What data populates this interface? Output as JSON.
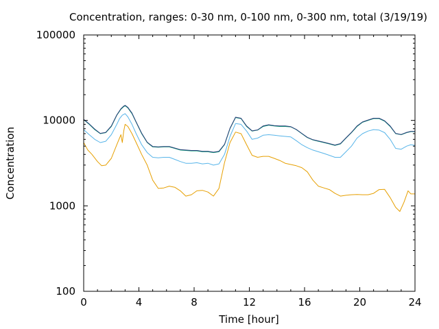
{
  "chart_data": {
    "type": "line",
    "title": "Concentration, ranges: 0-30 nm, 0-100 nm, 0-300 nm, total (3/19/19)",
    "xlabel": "Time [hour]",
    "ylabel": "Concentration",
    "xlim": [
      0,
      24
    ],
    "ylim": [
      100,
      100000
    ],
    "yscale": "log",
    "xticks": [
      0,
      4,
      8,
      12,
      16,
      20,
      24
    ],
    "xtick_labels": [
      "0",
      "4",
      "8",
      "12",
      "16",
      "20",
      "24"
    ],
    "yticks": [
      100,
      1000,
      10000,
      100000
    ],
    "ytick_labels": [
      "100",
      "1000",
      "10000",
      "100000"
    ],
    "grid": false,
    "legend": "none",
    "series": [
      {
        "color": "#e69f00",
        "x": [
          0,
          0.3,
          0.6,
          1.0,
          1.3,
          1.6,
          2.0,
          2.4,
          2.7,
          2.8,
          2.9,
          3.0,
          3.2,
          3.5,
          3.8,
          4.2,
          4.6,
          5.0,
          5.4,
          5.8,
          6.2,
          6.6,
          7.0,
          7.4,
          7.8,
          8.2,
          8.6,
          9.0,
          9.4,
          9.8,
          10.2,
          10.6,
          11.0,
          11.4,
          11.8,
          12.2,
          12.6,
          13.0,
          13.4,
          13.8,
          14.2,
          14.6,
          15.0,
          15.4,
          15.8,
          16.2,
          16.6,
          17.0,
          17.4,
          17.8,
          18.2,
          18.6,
          19.0,
          19.4,
          19.8,
          20.2,
          20.6,
          21.0,
          21.4,
          21.8,
          22.2,
          22.6,
          22.9,
          23.2,
          23.5,
          23.7,
          24.0
        ],
        "y": [
          5500,
          4500,
          4000,
          3300,
          2950,
          3000,
          3600,
          5200,
          6800,
          5500,
          7500,
          9000,
          8500,
          7000,
          5500,
          4000,
          3000,
          2000,
          1600,
          1620,
          1700,
          1650,
          1500,
          1300,
          1350,
          1500,
          1520,
          1450,
          1300,
          1600,
          3200,
          5500,
          7300,
          7000,
          5200,
          3900,
          3700,
          3800,
          3800,
          3600,
          3400,
          3150,
          3050,
          2950,
          2800,
          2500,
          2000,
          1700,
          1620,
          1550,
          1400,
          1300,
          1330,
          1350,
          1360,
          1350,
          1350,
          1400,
          1550,
          1560,
          1250,
          960,
          860,
          1100,
          1500,
          1380,
          1380
        ]
      },
      {
        "color": "#56b4e9",
        "x": [
          0,
          0.4,
          0.8,
          1.2,
          1.6,
          2.0,
          2.4,
          2.6,
          2.8,
          3.0,
          3.2,
          3.5,
          3.8,
          4.2,
          4.6,
          5.0,
          5.4,
          5.8,
          6.2,
          6.6,
          7.0,
          7.4,
          7.8,
          8.2,
          8.6,
          9.0,
          9.4,
          9.8,
          10.2,
          10.6,
          11.0,
          11.4,
          11.8,
          12.2,
          12.6,
          13.0,
          13.4,
          13.8,
          14.2,
          14.6,
          15.0,
          15.4,
          15.8,
          16.2,
          16.6,
          17.0,
          17.4,
          17.8,
          18.2,
          18.6,
          19.0,
          19.4,
          19.8,
          20.2,
          20.6,
          21.0,
          21.4,
          21.8,
          22.2,
          22.6,
          23.0,
          23.4,
          23.7,
          24.0
        ],
        "y": [
          7800,
          6800,
          6000,
          5500,
          5700,
          6800,
          9000,
          10500,
          11500,
          12000,
          11000,
          9000,
          7000,
          5200,
          4200,
          3700,
          3650,
          3700,
          3700,
          3500,
          3300,
          3150,
          3150,
          3200,
          3100,
          3150,
          3000,
          3100,
          4000,
          6500,
          9200,
          9000,
          7500,
          6000,
          6200,
          6700,
          6800,
          6700,
          6600,
          6500,
          6400,
          5800,
          5200,
          4800,
          4500,
          4300,
          4100,
          3900,
          3700,
          3700,
          4300,
          5000,
          6200,
          7000,
          7500,
          7800,
          7700,
          7200,
          6000,
          4700,
          4600,
          5000,
          5200,
          5100
        ]
      },
      {
        "color": "#009e73",
        "x": [
          0,
          0.4,
          0.8,
          1.2,
          1.6,
          2.0,
          2.4,
          2.7,
          2.9,
          3.0,
          3.2,
          3.5,
          3.8,
          4.2,
          4.6,
          5.0,
          5.4,
          5.8,
          6.2,
          6.6,
          7.0,
          7.4,
          7.8,
          8.2,
          8.6,
          9.0,
          9.4,
          9.8,
          10.2,
          10.6,
          11.0,
          11.4,
          11.8,
          12.2,
          12.6,
          13.0,
          13.4,
          13.8,
          14.2,
          14.6,
          15.0,
          15.4,
          15.8,
          16.2,
          16.6,
          17.0,
          17.4,
          17.8,
          18.2,
          18.6,
          19.0,
          19.4,
          19.8,
          20.2,
          20.6,
          21.0,
          21.4,
          21.8,
          22.2,
          22.6,
          23.0,
          23.4,
          23.7,
          24.0
        ],
        "y": [
          10200,
          9000,
          7800,
          7000,
          7200,
          8500,
          11500,
          13500,
          14500,
          14800,
          14000,
          12000,
          9500,
          7000,
          5500,
          4900,
          4850,
          4900,
          4900,
          4700,
          4500,
          4450,
          4400,
          4400,
          4300,
          4300,
          4200,
          4300,
          5200,
          8000,
          10800,
          10500,
          8500,
          7500,
          7700,
          8500,
          8800,
          8600,
          8500,
          8500,
          8400,
          7800,
          7000,
          6300,
          5900,
          5700,
          5500,
          5300,
          5100,
          5300,
          6200,
          7200,
          8500,
          9500,
          10000,
          10500,
          10500,
          9800,
          8500,
          7000,
          6800,
          7200,
          7400,
          7400
        ]
      },
      {
        "color": "#2c3e7a",
        "x": [
          0,
          0.4,
          0.8,
          1.2,
          1.6,
          2.0,
          2.4,
          2.7,
          2.9,
          3.0,
          3.2,
          3.5,
          3.8,
          4.2,
          4.6,
          5.0,
          5.4,
          5.8,
          6.2,
          6.6,
          7.0,
          7.4,
          7.8,
          8.2,
          8.6,
          9.0,
          9.4,
          9.8,
          10.2,
          10.6,
          11.0,
          11.4,
          11.8,
          12.2,
          12.6,
          13.0,
          13.4,
          13.8,
          14.2,
          14.6,
          15.0,
          15.4,
          15.8,
          16.2,
          16.6,
          17.0,
          17.4,
          17.8,
          18.2,
          18.6,
          19.0,
          19.4,
          19.8,
          20.2,
          20.6,
          21.0,
          21.4,
          21.8,
          22.2,
          22.6,
          23.0,
          23.4,
          23.7,
          24.0
        ],
        "y": [
          10300,
          9100,
          7900,
          7050,
          7250,
          8600,
          11600,
          13700,
          14700,
          15000,
          14200,
          12200,
          9600,
          7100,
          5550,
          4950,
          4900,
          4950,
          4950,
          4750,
          4550,
          4500,
          4450,
          4450,
          4350,
          4350,
          4250,
          4350,
          5250,
          8100,
          10900,
          10600,
          8600,
          7550,
          7750,
          8600,
          8900,
          8700,
          8600,
          8600,
          8450,
          7850,
          7050,
          6350,
          5950,
          5750,
          5550,
          5350,
          5150,
          5350,
          6250,
          7250,
          8600,
          9600,
          10100,
          10600,
          10600,
          9900,
          8600,
          7050,
          6850,
          7250,
          7450,
          7450
        ]
      }
    ]
  }
}
